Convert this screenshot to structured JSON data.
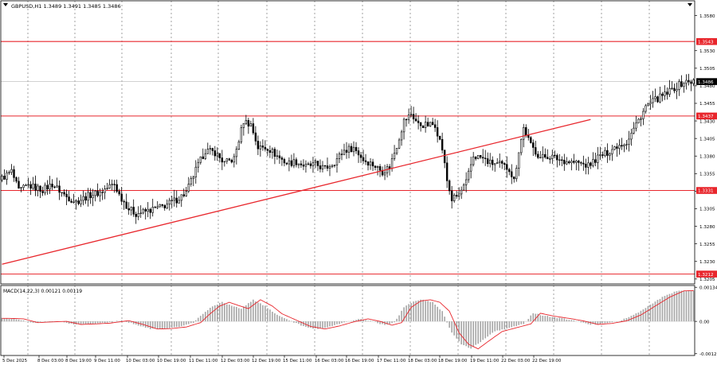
{
  "chart_data": [
    {
      "type": "candlestick",
      "header": "GBPUSD,H1  1.3489 1.3491 1.3485 1.3486",
      "y_ticks": [
        "1.3580",
        "1.3530",
        "1.3505",
        "1.3480",
        "1.3455",
        "1.3430",
        "1.3405",
        "1.3380",
        "1.3355",
        "1.3330",
        "1.3305",
        "1.3280",
        "1.3255",
        "1.3230",
        "1.3205"
      ],
      "y_range": [
        1.3198,
        1.3601
      ],
      "levels": [
        {
          "price": 1.3543,
          "label": "1.3543",
          "color": "#e8262c"
        },
        {
          "price": 1.3437,
          "label": "1.3437",
          "color": "#e8262c"
        },
        {
          "price": 1.3331,
          "label": "1.3331",
          "color": "#e8262c"
        },
        {
          "price": 1.3212,
          "label": "1.3212",
          "color": "#e8262c"
        }
      ],
      "current_price": {
        "price": 1.3486,
        "label": "1.3486"
      },
      "trendline": {
        "color": "#e8262c",
        "start": {
          "bar": 0,
          "price": 1.3226
        },
        "end": {
          "bar": 246,
          "price": 1.3432
        }
      },
      "x_labels": [
        "5 Dec 2025",
        "8 Dec 03:00",
        "8 Dec 19:00",
        "9 Dec 11:00",
        "10 Dec 03:00",
        "10 Dec 19:00",
        "11 Dec 11:00",
        "12 Dec 03:00",
        "12 Dec 19:00",
        "15 Dec 11:00",
        "16 Dec 03:00",
        "16 Dec 19:00",
        "17 Dec 11:00",
        "18 Dec 03:00",
        "18 Dec 19:00",
        "19 Dec 11:00",
        "22 Dec 03:00",
        "22 Dec 19:00"
      ],
      "bars_total": 290,
      "price_path": [
        [
          0,
          1.3346
        ],
        [
          5,
          1.3358
        ],
        [
          8,
          1.333
        ],
        [
          12,
          1.3338
        ],
        [
          18,
          1.3332
        ],
        [
          22,
          1.334
        ],
        [
          28,
          1.3322
        ],
        [
          32,
          1.3315
        ],
        [
          38,
          1.3325
        ],
        [
          42,
          1.3328
        ],
        [
          46,
          1.3337
        ],
        [
          48,
          1.334
        ],
        [
          50,
          1.3325
        ],
        [
          54,
          1.3305
        ],
        [
          57,
          1.3298
        ],
        [
          62,
          1.3302
        ],
        [
          68,
          1.3308
        ],
        [
          74,
          1.3318
        ],
        [
          78,
          1.3328
        ],
        [
          82,
          1.336
        ],
        [
          86,
          1.3388
        ],
        [
          90,
          1.3385
        ],
        [
          94,
          1.337
        ],
        [
          98,
          1.3376
        ],
        [
          102,
          1.343
        ],
        [
          105,
          1.3425
        ],
        [
          108,
          1.3392
        ],
        [
          112,
          1.3392
        ],
        [
          116,
          1.338
        ],
        [
          120,
          1.337
        ],
        [
          124,
          1.3372
        ],
        [
          128,
          1.3365
        ],
        [
          132,
          1.3368
        ],
        [
          136,
          1.3362
        ],
        [
          140,
          1.3372
        ],
        [
          144,
          1.3388
        ],
        [
          148,
          1.3392
        ],
        [
          152,
          1.3375
        ],
        [
          156,
          1.3368
        ],
        [
          160,
          1.3358
        ],
        [
          163,
          1.3365
        ],
        [
          166,
          1.3395
        ],
        [
          169,
          1.343
        ],
        [
          172,
          1.344
        ],
        [
          175,
          1.3425
        ],
        [
          178,
          1.3424
        ],
        [
          182,
          1.3425
        ],
        [
          185,
          1.339
        ],
        [
          187,
          1.3345
        ],
        [
          189,
          1.3318
        ],
        [
          192,
          1.3325
        ],
        [
          195,
          1.3342
        ],
        [
          198,
          1.338
        ],
        [
          201,
          1.3378
        ],
        [
          205,
          1.337
        ],
        [
          209,
          1.3368
        ],
        [
          213,
          1.3362
        ],
        [
          215,
          1.3345
        ],
        [
          217,
          1.3388
        ],
        [
          219,
          1.342
        ],
        [
          222,
          1.3395
        ],
        [
          226,
          1.3378
        ],
        [
          230,
          1.338
        ],
        [
          234,
          1.3375
        ],
        [
          238,
          1.3372
        ],
        [
          242,
          1.337
        ],
        [
          246,
          1.3366
        ],
        [
          250,
          1.3378
        ],
        [
          254,
          1.3385
        ],
        [
          258,
          1.3395
        ],
        [
          262,
          1.34
        ],
        [
          266,
          1.3425
        ],
        [
          270,
          1.345
        ],
        [
          274,
          1.346
        ],
        [
          278,
          1.3467
        ],
        [
          282,
          1.3477
        ],
        [
          286,
          1.3485
        ],
        [
          289,
          1.3486
        ]
      ]
    },
    {
      "type": "macd",
      "label": "MACD(14,22,3) 0.00121 0.00119",
      "y_ticks": [
        "0.00134",
        "0.00",
        "-0.00127"
      ],
      "y_range": [
        -0.00134,
        0.00141
      ],
      "hist_path": [
        [
          0,
          0.00012
        ],
        [
          6,
          0.0001
        ],
        [
          12,
          -5e-05
        ],
        [
          18,
          -2e-05
        ],
        [
          24,
          0.0
        ],
        [
          30,
          -0.00012
        ],
        [
          36,
          -0.0001
        ],
        [
          42,
          -7e-05
        ],
        [
          50,
          3e-05
        ],
        [
          56,
          -0.00012
        ],
        [
          62,
          -0.0003
        ],
        [
          68,
          -0.00028
        ],
        [
          74,
          -0.00022
        ],
        [
          80,
          -5e-05
        ],
        [
          84,
          0.0003
        ],
        [
          88,
          0.0006
        ],
        [
          92,
          0.00075
        ],
        [
          96,
          0.00062
        ],
        [
          100,
          0.0005
        ],
        [
          105,
          0.00085
        ],
        [
          110,
          0.0006
        ],
        [
          114,
          0.0003
        ],
        [
          120,
          5e-05
        ],
        [
          126,
          -0.0002
        ],
        [
          132,
          -0.0003
        ],
        [
          138,
          -0.00018
        ],
        [
          144,
          -2e-05
        ],
        [
          150,
          0.0001
        ],
        [
          155,
          0.0
        ],
        [
          160,
          -0.00015
        ],
        [
          164,
          -5e-05
        ],
        [
          168,
          0.00055
        ],
        [
          172,
          0.0008
        ],
        [
          176,
          0.00085
        ],
        [
          180,
          0.00075
        ],
        [
          184,
          0.0004
        ],
        [
          188,
          -0.00045
        ],
        [
          192,
          -0.0009
        ],
        [
          196,
          -0.00108
        ],
        [
          200,
          -0.0008
        ],
        [
          206,
          -0.0004
        ],
        [
          212,
          -0.00025
        ],
        [
          218,
          -0.0001
        ],
        [
          222,
          0.00032
        ],
        [
          228,
          0.0002
        ],
        [
          234,
          0.00012
        ],
        [
          240,
          2e-05
        ],
        [
          246,
          -0.00012
        ],
        [
          252,
          -8e-05
        ],
        [
          258,
          2e-05
        ],
        [
          264,
          0.00025
        ],
        [
          270,
          0.0006
        ],
        [
          276,
          0.00095
        ],
        [
          282,
          0.0012
        ],
        [
          289,
          0.00121
        ]
      ]
    }
  ]
}
